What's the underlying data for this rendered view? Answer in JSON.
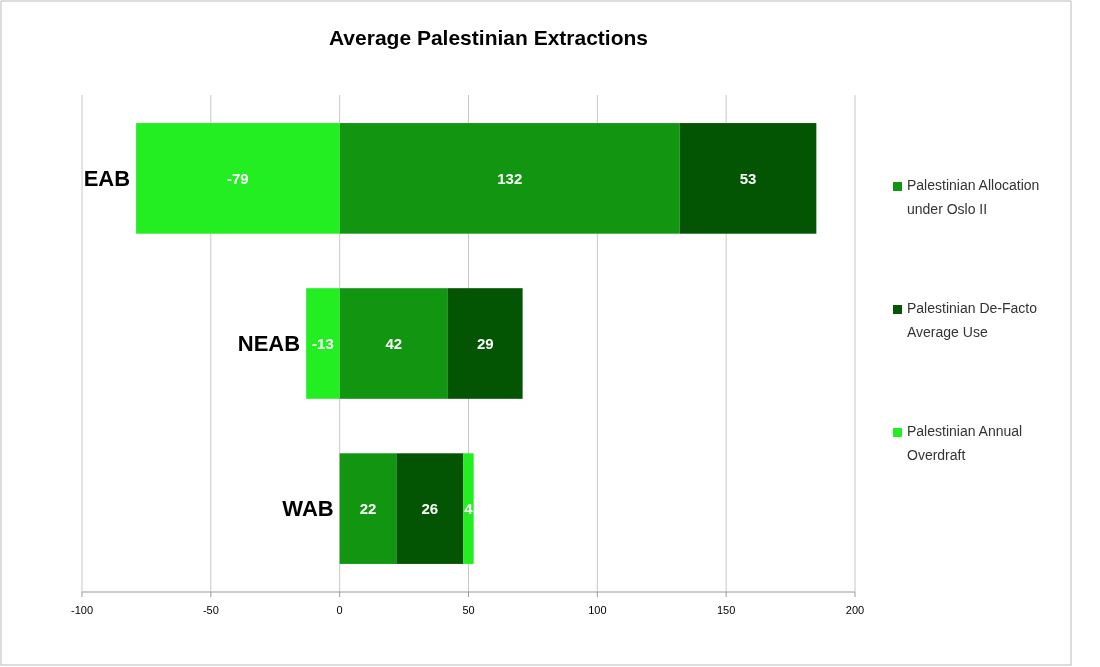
{
  "chart_data": {
    "type": "bar",
    "orientation": "horizontal",
    "stacked": true,
    "title": "Average Palestinian Extractions",
    "categories": [
      "EAB",
      "NEAB",
      "WAB"
    ],
    "series": [
      {
        "name": "Palestinian Allocation under Oslo II",
        "color": "#129612",
        "values": [
          132,
          42,
          22
        ]
      },
      {
        "name": "Palestinian De-Facto Average Use",
        "color": "#035403",
        "values": [
          53,
          29,
          26
        ]
      },
      {
        "name": "Palestinian Annual Overdraft",
        "color": "#22ee22",
        "values": [
          -79,
          -13,
          4
        ]
      }
    ],
    "xlim": [
      -100,
      200
    ],
    "xticks": [
      -100,
      -50,
      0,
      50,
      100,
      150,
      200
    ],
    "grid": "x",
    "legend": "right",
    "data_labels": true
  }
}
